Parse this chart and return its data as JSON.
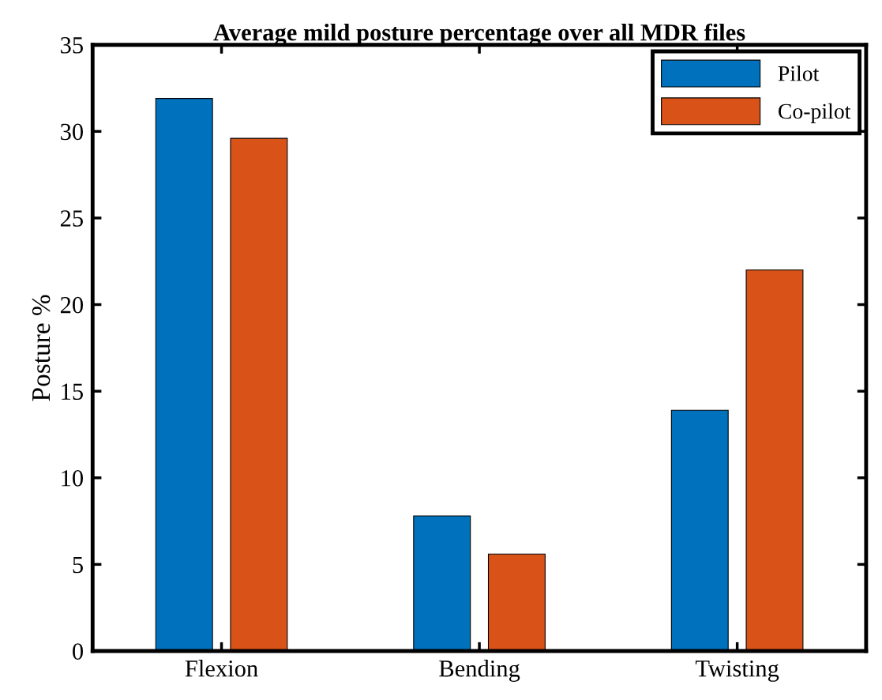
{
  "chart_data": {
    "type": "bar",
    "title": "Average mild posture percentage over all MDR files",
    "ylabel": "Posture %",
    "categories": [
      "Flexion",
      "Bending",
      "Twisting"
    ],
    "series": [
      {
        "name": "Pilot",
        "color": "#0072bd",
        "values": [
          31.9,
          7.8,
          13.9
        ]
      },
      {
        "name": "Co-pilot",
        "color": "#d95319",
        "values": [
          29.6,
          5.6,
          22.0
        ]
      }
    ],
    "ylim": [
      0,
      35
    ],
    "yticks": [
      0,
      5,
      10,
      15,
      20,
      25,
      30,
      35
    ],
    "grid": false,
    "legend": "top right"
  }
}
